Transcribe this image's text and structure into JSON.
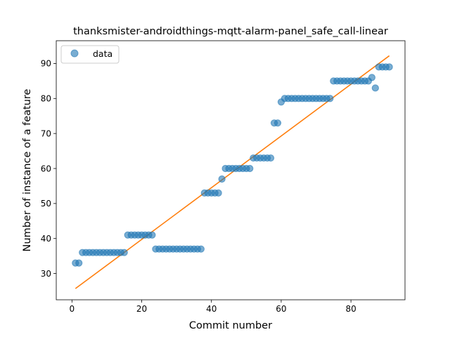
{
  "chart_data": {
    "type": "scatter",
    "title": "thanksmister-androidthings-mqtt-alarm-panel_safe_call-linear",
    "xlabel": "Commit number",
    "ylabel": "Number of instance of a feature",
    "xlim": [
      -4.5,
      95.5
    ],
    "ylim": [
      22.5,
      96.5
    ],
    "xticks": [
      0,
      20,
      40,
      60,
      80
    ],
    "yticks": [
      30,
      40,
      50,
      60,
      70,
      80,
      90
    ],
    "legend": {
      "position": "top-left",
      "entries": [
        {
          "label": "data",
          "marker": "circle",
          "color": "#1f77b4"
        }
      ]
    },
    "grid": false,
    "series": [
      {
        "name": "data",
        "kind": "scatter",
        "color": "#1f77b4",
        "x": [
          1,
          2,
          3,
          4,
          5,
          6,
          7,
          8,
          9,
          10,
          11,
          12,
          13,
          14,
          15,
          16,
          17,
          18,
          19,
          20,
          21,
          22,
          23,
          24,
          25,
          26,
          27,
          28,
          29,
          30,
          31,
          32,
          33,
          34,
          35,
          36,
          37,
          38,
          39,
          40,
          41,
          42,
          43,
          44,
          45,
          46,
          47,
          48,
          49,
          50,
          51,
          52,
          53,
          54,
          55,
          56,
          57,
          58,
          59,
          60,
          61,
          62,
          63,
          64,
          65,
          66,
          67,
          68,
          69,
          70,
          71,
          72,
          73,
          74,
          75,
          76,
          77,
          78,
          79,
          80,
          81,
          82,
          83,
          84,
          85,
          86,
          87,
          88,
          89,
          90,
          91
        ],
        "y": [
          33,
          33,
          36,
          36,
          36,
          36,
          36,
          36,
          36,
          36,
          36,
          36,
          36,
          36,
          36,
          41,
          41,
          41,
          41,
          41,
          41,
          41,
          41,
          37,
          37,
          37,
          37,
          37,
          37,
          37,
          37,
          37,
          37,
          37,
          37,
          37,
          37,
          53,
          53,
          53,
          53,
          53,
          57,
          60,
          60,
          60,
          60,
          60,
          60,
          60,
          60,
          63,
          63,
          63,
          63,
          63,
          63,
          73,
          73,
          79,
          80,
          80,
          80,
          80,
          80,
          80,
          80,
          80,
          80,
          80,
          80,
          80,
          80,
          80,
          85,
          85,
          85,
          85,
          85,
          85,
          85,
          85,
          85,
          85,
          85,
          86,
          83,
          89,
          89,
          89,
          89
        ]
      },
      {
        "name": "",
        "kind": "line",
        "color": "#ff7f0e",
        "x": [
          1,
          91
        ],
        "y": [
          25.7,
          92.2
        ]
      }
    ]
  }
}
